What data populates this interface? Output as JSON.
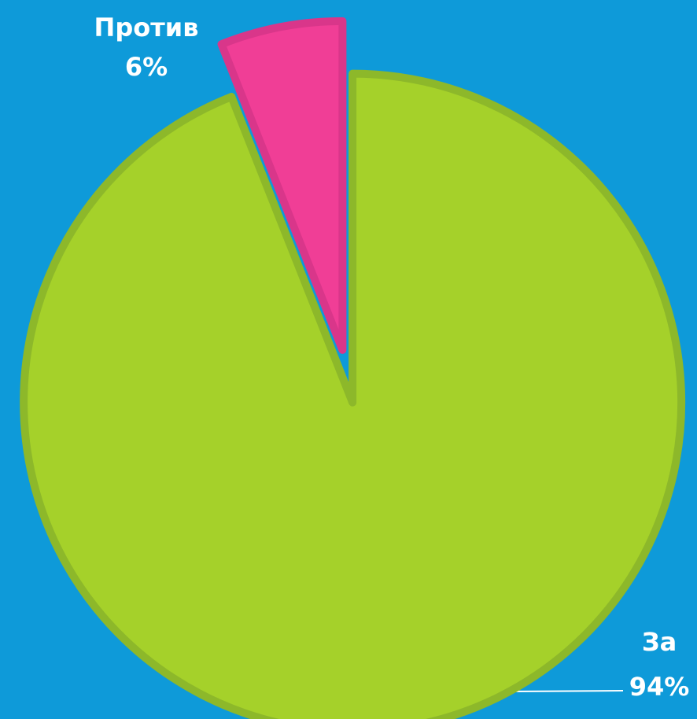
{
  "chart_data": {
    "type": "pie",
    "categories": [
      "За",
      "Против"
    ],
    "values": [
      94,
      6
    ],
    "value_labels": [
      "94%",
      "6%"
    ],
    "colors": [
      "#a5d12a",
      "#f03e96"
    ]
  }
}
